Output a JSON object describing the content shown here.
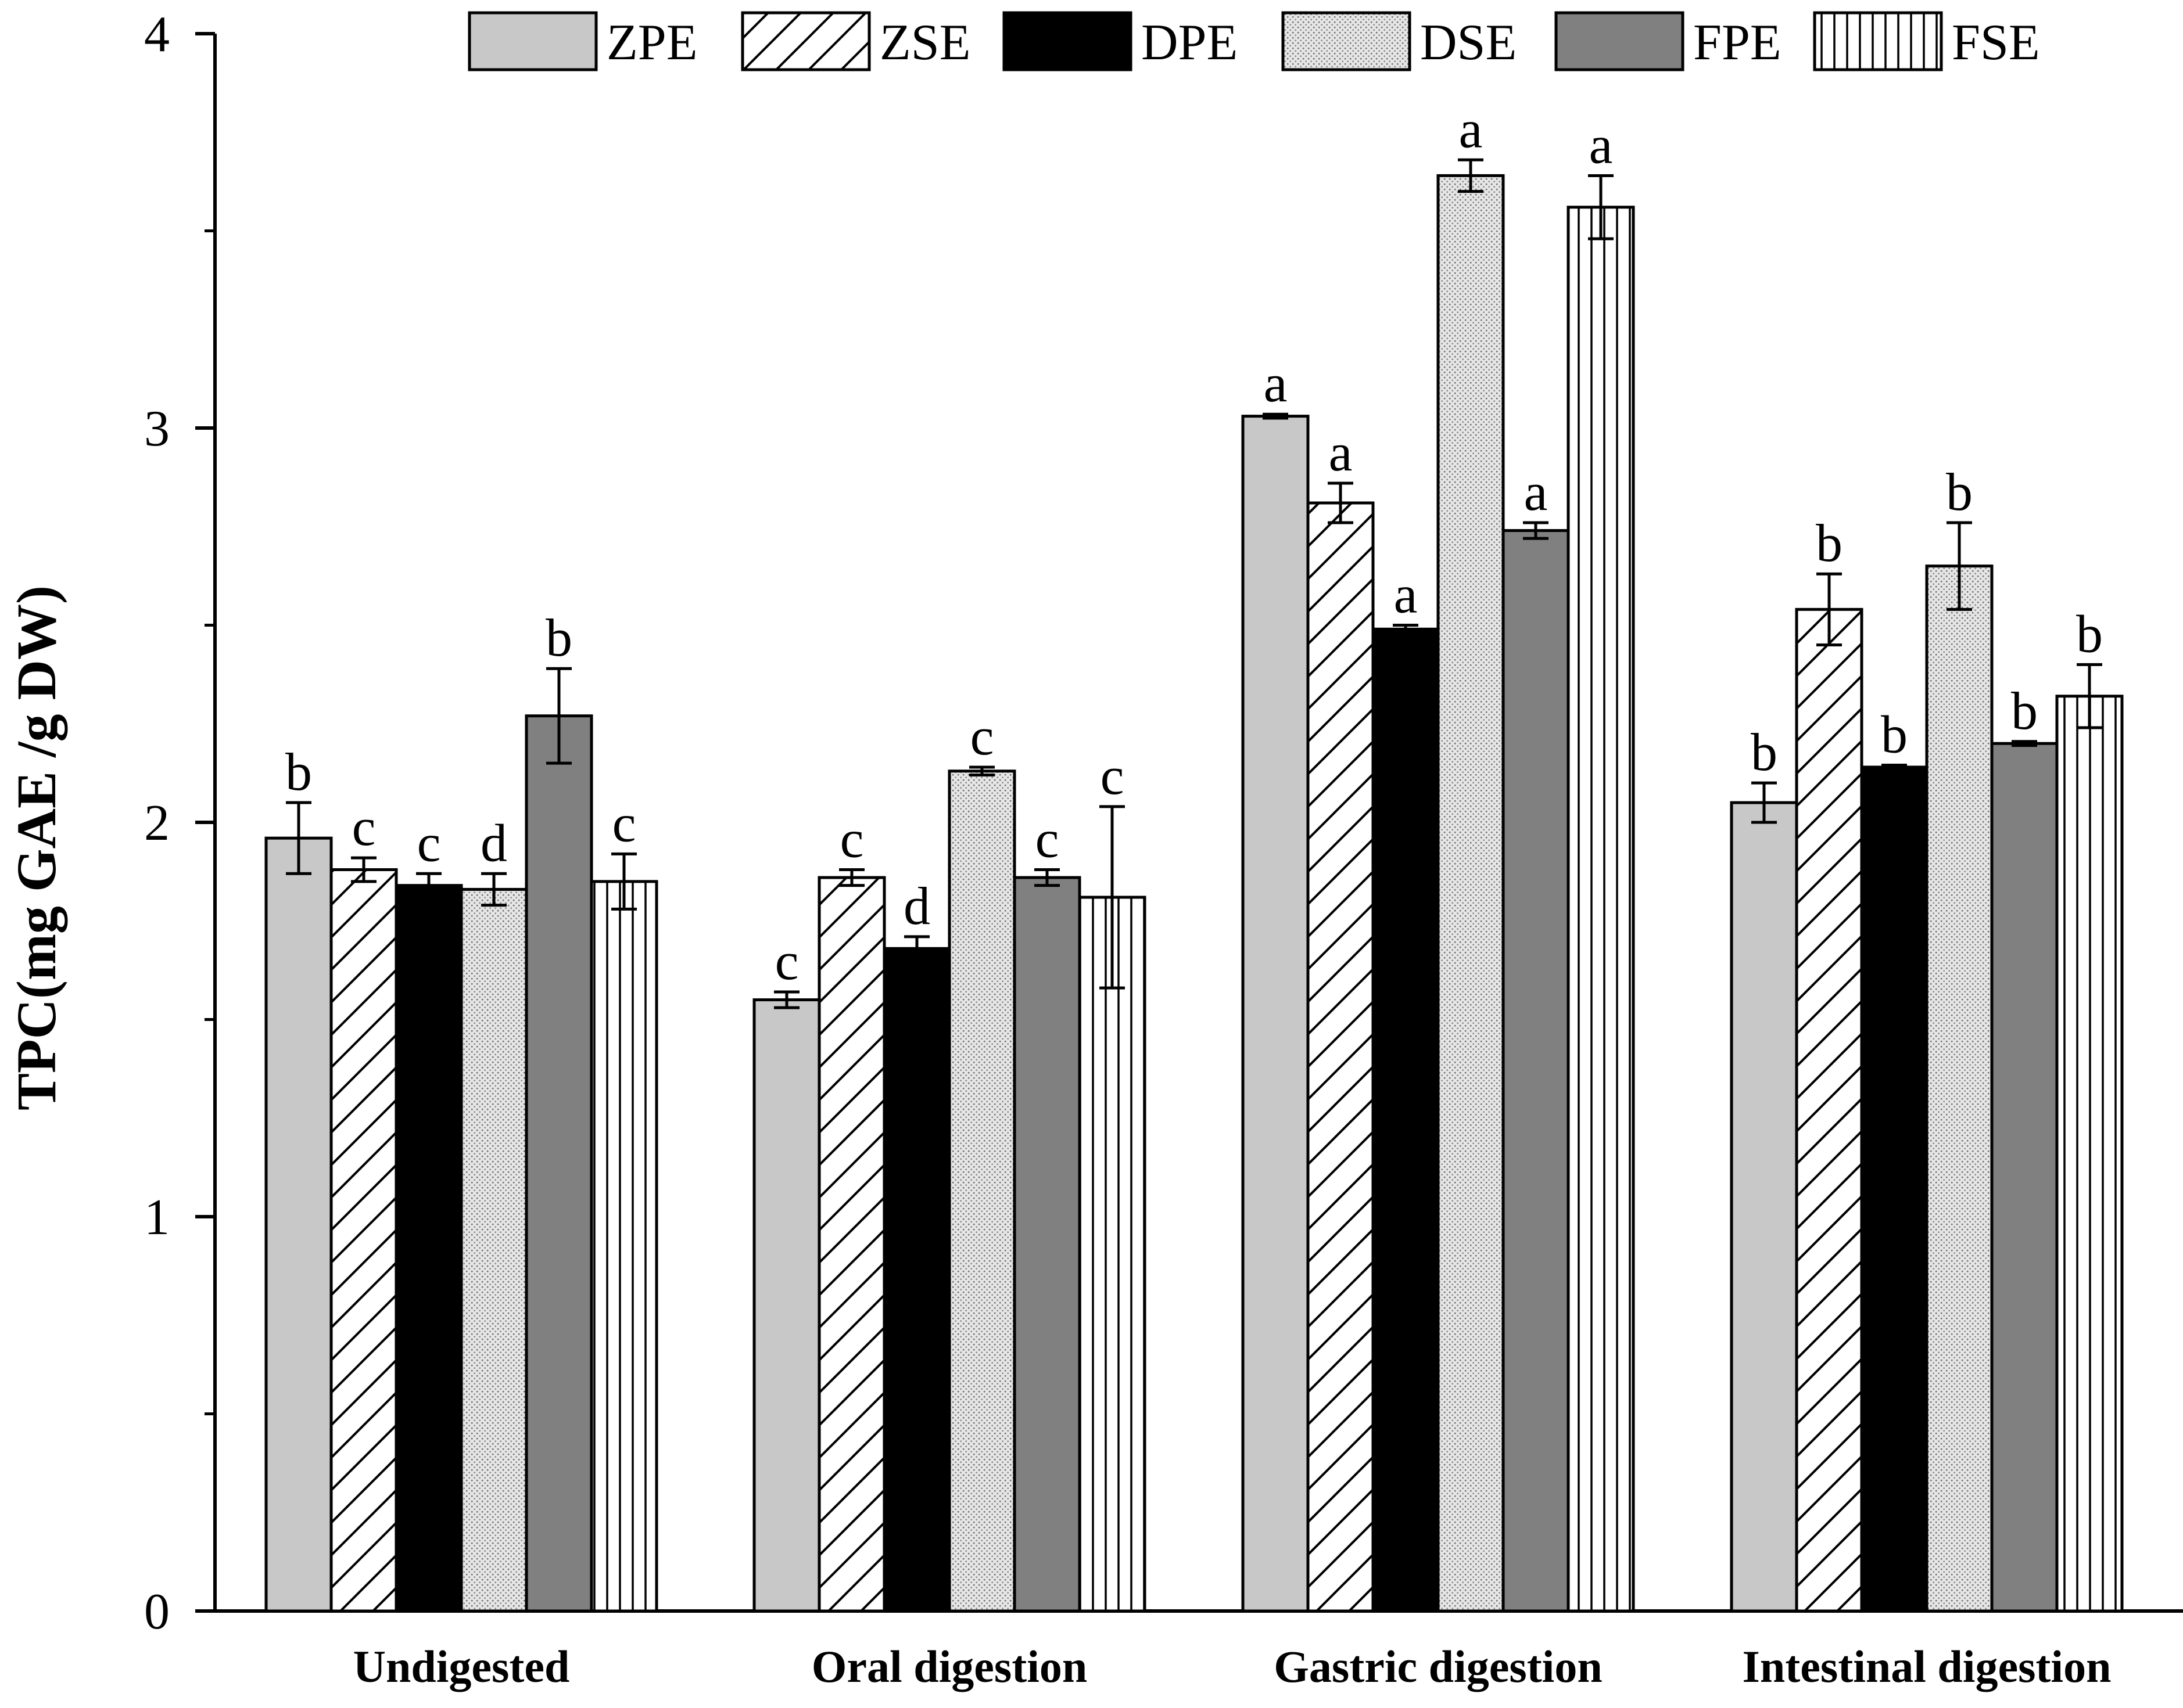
{
  "chart_data": {
    "type": "bar",
    "title": "",
    "xlabel": "",
    "ylabel": "TPC(mg GAE /g DW)",
    "ylim": [
      0,
      4
    ],
    "yticks": [
      0,
      1,
      2,
      3,
      4
    ],
    "grid": false,
    "legend_position": "top",
    "categories": [
      "Undigested",
      "Oral digestion",
      "Gastric digestion",
      "Intestinal digestion"
    ],
    "series": [
      {
        "name": "ZPE",
        "pattern": "solid-light-gray",
        "color": "#c8c8c8",
        "values": [
          1.96,
          1.55,
          3.03,
          2.05
        ],
        "errors": [
          0.09,
          0.02,
          0.005,
          0.05
        ],
        "labels": [
          "b",
          "c",
          "a",
          "b"
        ]
      },
      {
        "name": "ZSE",
        "pattern": "diagonal-hatch",
        "color": "#ffffff",
        "values": [
          1.88,
          1.86,
          2.81,
          2.54
        ],
        "errors": [
          0.03,
          0.02,
          0.05,
          0.09
        ],
        "labels": [
          "c",
          "c",
          "a",
          "b"
        ]
      },
      {
        "name": "DPE",
        "pattern": "solid-black",
        "color": "#000000",
        "values": [
          1.84,
          1.68,
          2.49,
          2.14
        ],
        "errors": [
          0.03,
          0.03,
          0.01,
          0.005
        ],
        "labels": [
          "c",
          "d",
          "a",
          "b"
        ]
      },
      {
        "name": "DSE",
        "pattern": "stipple",
        "color": "#d8d8d8",
        "values": [
          1.83,
          2.13,
          3.64,
          2.65
        ],
        "errors": [
          0.04,
          0.01,
          0.04,
          0.11
        ],
        "labels": [
          "d",
          "c",
          "a",
          "b"
        ]
      },
      {
        "name": "FPE",
        "pattern": "solid-dark-gray",
        "color": "#808080",
        "values": [
          2.27,
          1.86,
          2.74,
          2.2
        ],
        "errors": [
          0.12,
          0.02,
          0.02,
          0.005
        ],
        "labels": [
          "b",
          "c",
          "a",
          "b"
        ]
      },
      {
        "name": "FSE",
        "pattern": "vertical-hatch",
        "color": "#ffffff",
        "values": [
          1.85,
          1.81,
          3.56,
          2.32
        ],
        "errors": [
          0.07,
          0.23,
          0.08,
          0.08
        ],
        "labels": [
          "c",
          "c",
          "a",
          "b"
        ]
      }
    ]
  }
}
